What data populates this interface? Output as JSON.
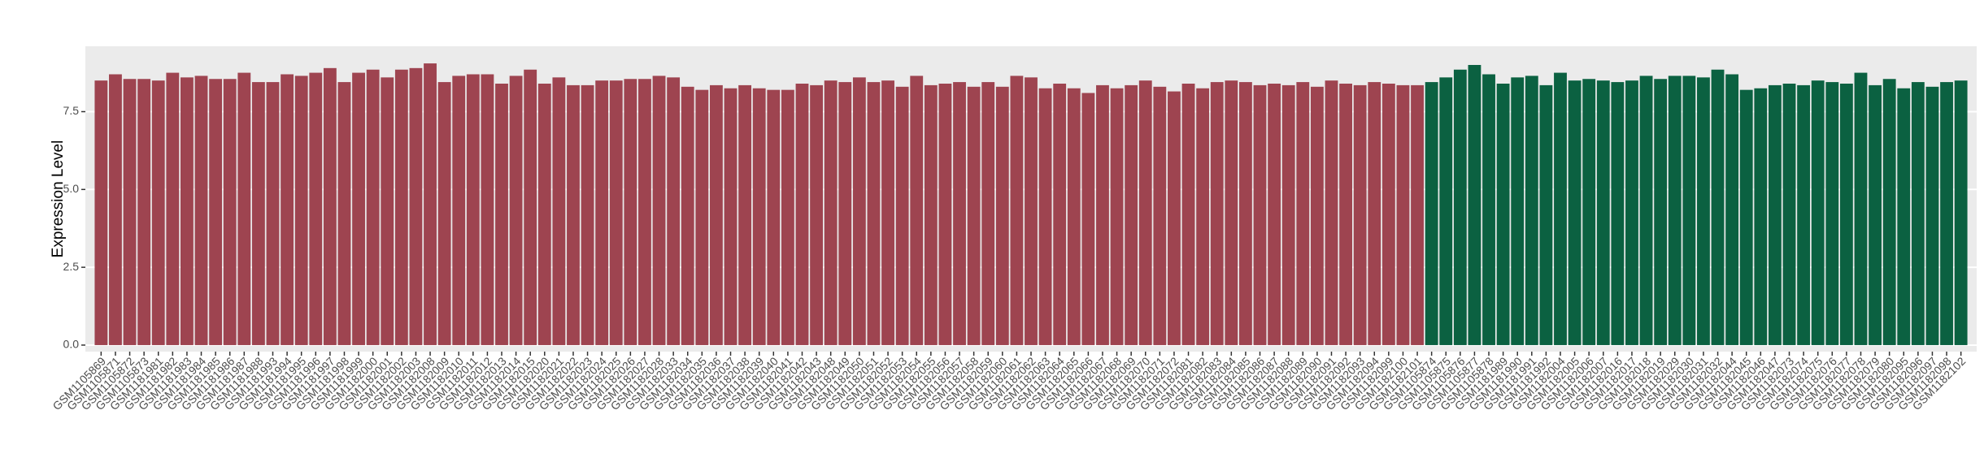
{
  "chart_data": {
    "type": "bar",
    "y_label": "Expression Level",
    "categories": [
      "GSM1105869",
      "GSM1105871",
      "GSM1105872",
      "GSM1105873",
      "GSM1181981",
      "GSM1181982",
      "GSM1181983",
      "GSM1181984",
      "GSM1181985",
      "GSM1181986",
      "GSM1181987",
      "GSM1181988",
      "GSM1181993",
      "GSM1181994",
      "GSM1181995",
      "GSM1181996",
      "GSM1181997",
      "GSM1181998",
      "GSM1181999",
      "GSM1182000",
      "GSM1182001",
      "GSM1182002",
      "GSM1182003",
      "GSM1182008",
      "GSM1182009",
      "GSM1182010",
      "GSM1182011",
      "GSM1182012",
      "GSM1182013",
      "GSM1182014",
      "GSM1182015",
      "GSM1182020",
      "GSM1182021",
      "GSM1182022",
      "GSM1182023",
      "GSM1182024",
      "GSM1182025",
      "GSM1182026",
      "GSM1182027",
      "GSM1182028",
      "GSM1182033",
      "GSM1182034",
      "GSM1182035",
      "GSM1182036",
      "GSM1182037",
      "GSM1182038",
      "GSM1182039",
      "GSM1182040",
      "GSM1182041",
      "GSM1182042",
      "GSM1182043",
      "GSM1182048",
      "GSM1182049",
      "GSM1182050",
      "GSM1182051",
      "GSM1182052",
      "GSM1182053",
      "GSM1182054",
      "GSM1182055",
      "GSM1182056",
      "GSM1182057",
      "GSM1182058",
      "GSM1182059",
      "GSM1182060",
      "GSM1182061",
      "GSM1182062",
      "GSM1182063",
      "GSM1182064",
      "GSM1182065",
      "GSM1182066",
      "GSM1182067",
      "GSM1182068",
      "GSM1182069",
      "GSM1182070",
      "GSM1182071",
      "GSM1182072",
      "GSM1182081",
      "GSM1182082",
      "GSM1182083",
      "GSM1182084",
      "GSM1182085",
      "GSM1182086",
      "GSM1182087",
      "GSM1182088",
      "GSM1182089",
      "GSM1182090",
      "GSM1182091",
      "GSM1182092",
      "GSM1182093",
      "GSM1182094",
      "GSM1182099",
      "GSM1182100",
      "GSM1182101",
      "GSM1105874",
      "GSM1105875",
      "GSM1105876",
      "GSM1105877",
      "GSM1105878",
      "GSM1181989",
      "GSM1181990",
      "GSM1181991",
      "GSM1181992",
      "GSM1182004",
      "GSM1182005",
      "GSM1182006",
      "GSM1182007",
      "GSM1182016",
      "GSM1182017",
      "GSM1182018",
      "GSM1182019",
      "GSM1182029",
      "GSM1182030",
      "GSM1182031",
      "GSM1182032",
      "GSM1182044",
      "GSM1182045",
      "GSM1182046",
      "GSM1182047",
      "GSM1182073",
      "GSM1182074",
      "GSM1182075",
      "GSM1182076",
      "GSM1182077",
      "GSM1182078",
      "GSM1182079",
      "GSM1182080",
      "GSM1182095",
      "GSM1182096",
      "GSM1182097",
      "GSM1182098",
      "GSM1182102"
    ],
    "values": [
      8.5,
      8.7,
      8.55,
      8.55,
      8.5,
      8.75,
      8.6,
      8.65,
      8.55,
      8.55,
      8.75,
      8.45,
      8.45,
      8.7,
      8.65,
      8.75,
      8.9,
      8.45,
      8.75,
      8.85,
      8.6,
      8.85,
      8.9,
      9.05,
      8.45,
      8.65,
      8.7,
      8.7,
      8.4,
      8.65,
      8.85,
      8.4,
      8.6,
      8.35,
      8.35,
      8.5,
      8.5,
      8.55,
      8.55,
      8.65,
      8.6,
      8.3,
      8.2,
      8.35,
      8.25,
      8.35,
      8.25,
      8.2,
      8.2,
      8.4,
      8.35,
      8.5,
      8.45,
      8.6,
      8.45,
      8.5,
      8.3,
      8.65,
      8.35,
      8.4,
      8.45,
      8.3,
      8.45,
      8.3,
      8.65,
      8.6,
      8.25,
      8.4,
      8.25,
      8.1,
      8.35,
      8.25,
      8.35,
      8.5,
      8.3,
      8.15,
      8.4,
      8.25,
      8.45,
      8.5,
      8.45,
      8.35,
      8.4,
      8.35,
      8.45,
      8.3,
      8.5,
      8.4,
      8.35,
      8.45,
      8.4,
      8.35,
      8.35,
      8.45,
      8.6,
      8.85,
      9.0,
      8.7,
      8.4,
      8.6,
      8.65,
      8.35,
      8.75,
      8.5,
      8.55,
      8.5,
      8.45,
      8.5,
      8.65,
      8.55,
      8.65,
      8.65,
      8.6,
      8.85,
      8.7,
      8.2,
      8.25,
      8.35,
      8.4,
      8.35,
      8.5,
      8.45,
      8.4,
      8.75,
      8.35,
      8.55,
      8.25,
      8.45,
      8.3,
      8.45,
      8.5
    ],
    "colors": [
      "#9e4450",
      "#9e4450",
      "#9e4450",
      "#9e4450",
      "#9e4450",
      "#9e4450",
      "#9e4450",
      "#9e4450",
      "#9e4450",
      "#9e4450",
      "#9e4450",
      "#9e4450",
      "#9e4450",
      "#9e4450",
      "#9e4450",
      "#9e4450",
      "#9e4450",
      "#9e4450",
      "#9e4450",
      "#9e4450",
      "#9e4450",
      "#9e4450",
      "#9e4450",
      "#9e4450",
      "#9e4450",
      "#9e4450",
      "#9e4450",
      "#9e4450",
      "#9e4450",
      "#9e4450",
      "#9e4450",
      "#9e4450",
      "#9e4450",
      "#9e4450",
      "#9e4450",
      "#9e4450",
      "#9e4450",
      "#9e4450",
      "#9e4450",
      "#9e4450",
      "#9e4450",
      "#9e4450",
      "#9e4450",
      "#9e4450",
      "#9e4450",
      "#9e4450",
      "#9e4450",
      "#9e4450",
      "#9e4450",
      "#9e4450",
      "#9e4450",
      "#9e4450",
      "#9e4450",
      "#9e4450",
      "#9e4450",
      "#9e4450",
      "#9e4450",
      "#9e4450",
      "#9e4450",
      "#9e4450",
      "#9e4450",
      "#9e4450",
      "#9e4450",
      "#9e4450",
      "#9e4450",
      "#9e4450",
      "#9e4450",
      "#9e4450",
      "#9e4450",
      "#9e4450",
      "#9e4450",
      "#9e4450",
      "#9e4450",
      "#9e4450",
      "#9e4450",
      "#9e4450",
      "#9e4450",
      "#9e4450",
      "#9e4450",
      "#9e4450",
      "#9e4450",
      "#9e4450",
      "#9e4450",
      "#9e4450",
      "#9e4450",
      "#9e4450",
      "#9e4450",
      "#9e4450",
      "#9e4450",
      "#9e4450",
      "#9e4450",
      "#9e4450",
      "#9e4450",
      "#0b6141",
      "#0b6141",
      "#0b6141",
      "#0b6141",
      "#0b6141",
      "#0b6141",
      "#0b6141",
      "#0b6141",
      "#0b6141",
      "#0b6141",
      "#0b6141",
      "#0b6141",
      "#0b6141",
      "#0b6141",
      "#0b6141",
      "#0b6141",
      "#0b6141",
      "#0b6141",
      "#0b6141",
      "#0b6141",
      "#0b6141",
      "#0b6141",
      "#0b6141",
      "#0b6141",
      "#0b6141",
      "#0b6141",
      "#0b6141",
      "#0b6141",
      "#0b6141",
      "#0b6141",
      "#0b6141",
      "#0b6141",
      "#0b6141",
      "#0b6141",
      "#0b6141",
      "#0b6141",
      "#0b6141",
      "#0b6141"
    ],
    "ylim": [
      -0.21,
      9.6
    ],
    "yticks": [
      {
        "value": 0,
        "label": "0.0"
      },
      {
        "value": 2.5,
        "label": "2.5"
      },
      {
        "value": 5,
        "label": "5.0"
      },
      {
        "value": 7.5,
        "label": "7.5"
      }
    ],
    "grid": true
  }
}
